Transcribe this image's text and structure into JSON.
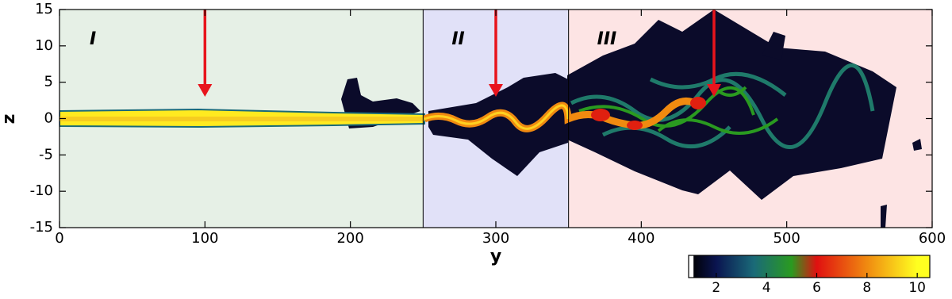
{
  "chart_data": {
    "type": "field",
    "x_label": "y",
    "y_label": "z",
    "xlim": [
      0,
      600
    ],
    "ylim": [
      -15,
      15
    ],
    "xticks": [
      0,
      100,
      200,
      300,
      400,
      500,
      600
    ],
    "yticks": [
      -15,
      -10,
      -5,
      0,
      5,
      10,
      15
    ],
    "regions": [
      {
        "label": "I",
        "start": 0,
        "end": 250,
        "color": "#e6f0e6"
      },
      {
        "label": "II",
        "start": 250,
        "end": 350,
        "color": "#e1e1f8"
      },
      {
        "label": "III",
        "start": 350,
        "end": 600,
        "color": "#fde4e4"
      }
    ],
    "arrows": [
      {
        "x": 100,
        "from": 15,
        "to": 3
      },
      {
        "x": 300,
        "from": 15,
        "to": 3
      },
      {
        "x": 450,
        "from": 15,
        "to": 3
      }
    ],
    "arrow_color": "#e8141c",
    "colorbar": {
      "lim": [
        0.9,
        10.5
      ],
      "ticks": [
        2,
        4,
        6,
        8,
        10
      ],
      "stops": [
        {
          "value": 1,
          "color": "#000000"
        },
        {
          "value": 2,
          "color": "#0a1450"
        },
        {
          "value": 3.5,
          "color": "#1a6a78"
        },
        {
          "value": 5,
          "color": "#2a9a20"
        },
        {
          "value": 6,
          "color": "#e01010"
        },
        {
          "value": 8,
          "color": "#f08a10"
        },
        {
          "value": 10,
          "color": "#ffff20"
        }
      ]
    }
  }
}
